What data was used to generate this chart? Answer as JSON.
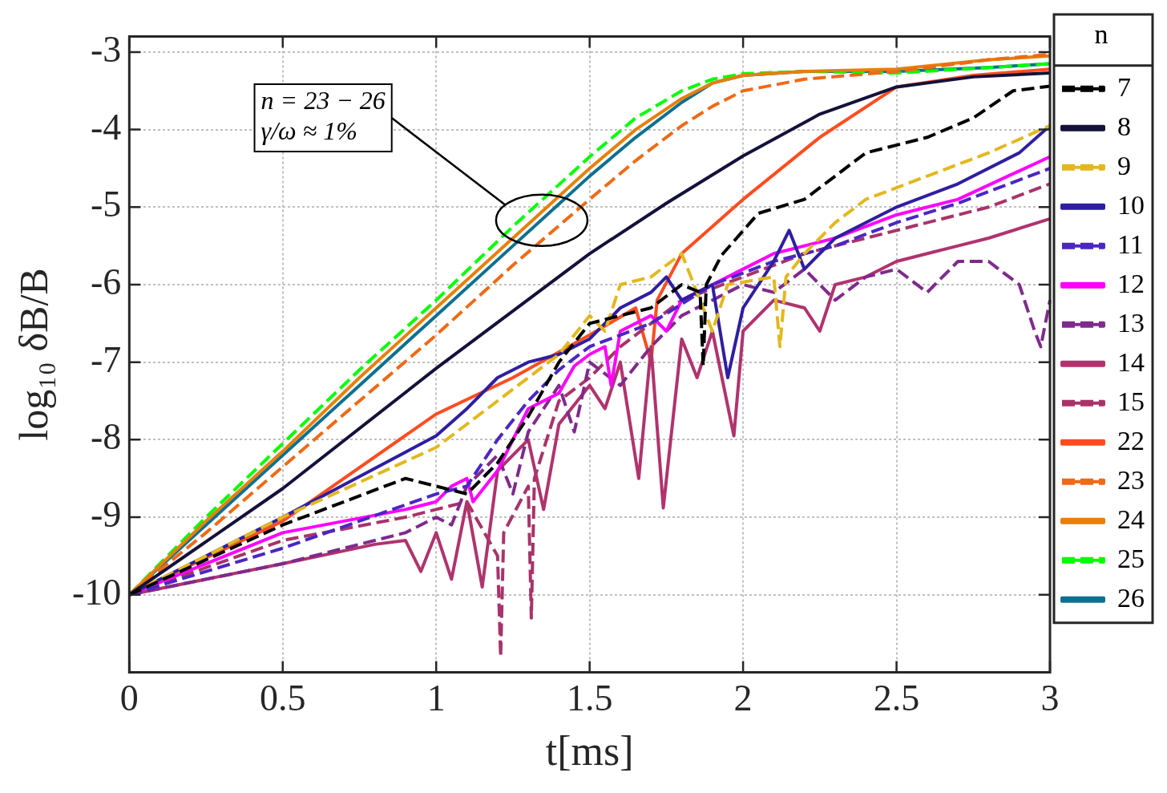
{
  "chart_data": {
    "type": "line",
    "xlabel": "t[ms]",
    "ylabel": "log₁₀ δB/B",
    "legend_title": "n",
    "legend": "right",
    "grid": true,
    "xlim": [
      0,
      3
    ],
    "xticks": [
      0,
      0.5,
      1,
      1.5,
      2,
      2.5,
      3
    ],
    "ylim": [
      -11,
      -2.8
    ],
    "yticks": [
      -10,
      -9,
      -8,
      -7,
      -6,
      -5,
      -4,
      -3
    ],
    "annotations": [
      "n = 23 − 26\nγ/ω ≈ 1%"
    ],
    "series": [
      {
        "name": "7",
        "color": "#000000",
        "line_style": "dashed",
        "x": [
          0,
          0.5,
          0.9,
          1.0,
          1.1,
          1.2,
          1.3,
          1.4,
          1.5,
          1.6,
          1.7,
          1.8,
          1.86,
          1.87,
          1.88,
          1.93,
          2.05,
          2.2,
          2.4,
          2.6,
          2.75,
          2.88,
          3
        ],
        "values": [
          -10,
          -9.1,
          -8.5,
          -8.6,
          -8.7,
          -8.3,
          -7.7,
          -7.0,
          -6.5,
          -6.4,
          -6.3,
          -6.0,
          -6.1,
          -7.05,
          -6.0,
          -5.62,
          -5.08,
          -4.9,
          -4.3,
          -4.1,
          -3.85,
          -3.5,
          -3.44
        ]
      },
      {
        "name": "8",
        "color": "#14123a",
        "x": [
          0,
          0.5,
          1,
          1.5,
          1.75,
          2,
          2.25,
          2.5,
          2.75,
          3
        ],
        "values": [
          -10,
          -8.63,
          -7.08,
          -5.6,
          -4.95,
          -4.34,
          -3.8,
          -3.45,
          -3.32,
          -3.27
        ]
      },
      {
        "name": "9",
        "color": "#e3b81d",
        "line_style": "dashed",
        "x": [
          0,
          0.5,
          1,
          1.1,
          1.2,
          1.3,
          1.4,
          1.5,
          1.55,
          1.6,
          1.7,
          1.8,
          1.85,
          1.9,
          1.95,
          2.1,
          2.12,
          2.14,
          2.2,
          2.3,
          2.4,
          2.6,
          2.8,
          3
        ],
        "values": [
          -10,
          -9.0,
          -8.1,
          -7.8,
          -7.5,
          -7.2,
          -6.9,
          -6.4,
          -6.6,
          -6.0,
          -5.9,
          -5.6,
          -6.1,
          -6.6,
          -6.0,
          -5.9,
          -6.8,
          -5.9,
          -5.6,
          -5.2,
          -4.9,
          -4.6,
          -4.3,
          -3.95
        ]
      },
      {
        "name": "10",
        "color": "#2e1fa0",
        "x": [
          0,
          0.5,
          1,
          1.1,
          1.2,
          1.3,
          1.4,
          1.5,
          1.6,
          1.7,
          1.75,
          1.8,
          1.9,
          1.95,
          2.0,
          2.1,
          2.15,
          2.2,
          2.3,
          2.5,
          2.7,
          2.9,
          3
        ],
        "values": [
          -10,
          -9.0,
          -7.95,
          -7.6,
          -7.2,
          -7.0,
          -6.9,
          -6.7,
          -6.3,
          -6.1,
          -5.9,
          -6.2,
          -6.0,
          -7.2,
          -6.3,
          -5.7,
          -5.3,
          -5.8,
          -5.4,
          -5.0,
          -4.7,
          -4.3,
          -3.95
        ]
      },
      {
        "name": "11",
        "color": "#4b26c4",
        "line_style": "dashed",
        "x": [
          0,
          0.5,
          1,
          1.1,
          1.2,
          1.3,
          1.4,
          1.5,
          1.7,
          1.9,
          2.1,
          2.3,
          2.5,
          2.7,
          3
        ],
        "values": [
          -10,
          -9.4,
          -8.7,
          -8.6,
          -8.0,
          -7.5,
          -7.1,
          -6.8,
          -6.5,
          -6.0,
          -5.7,
          -5.5,
          -5.2,
          -4.95,
          -4.5
        ]
      },
      {
        "name": "12",
        "color": "#ff00ff",
        "x": [
          0,
          0.5,
          0.9,
          1.0,
          1.05,
          1.1,
          1.12,
          1.2,
          1.3,
          1.4,
          1.45,
          1.5,
          1.55,
          1.57,
          1.6,
          1.7,
          1.75,
          1.8,
          1.9,
          2.0,
          2.1,
          2.3,
          2.5,
          2.7,
          3
        ],
        "values": [
          -10,
          -9.2,
          -8.9,
          -8.8,
          -8.6,
          -8.5,
          -8.8,
          -8.4,
          -7.6,
          -7.4,
          -7.05,
          -6.9,
          -6.8,
          -7.3,
          -6.6,
          -6.4,
          -6.6,
          -6.2,
          -6.0,
          -5.8,
          -5.6,
          -5.4,
          -5.1,
          -4.9,
          -4.35
        ]
      },
      {
        "name": "13",
        "color": "#7f2a8c",
        "line_style": "dashed",
        "x": [
          0,
          0.5,
          0.9,
          1.0,
          1.05,
          1.1,
          1.2,
          1.25,
          1.3,
          1.4,
          1.45,
          1.5,
          1.6,
          1.7,
          1.8,
          2.0,
          2.1,
          2.2,
          2.3,
          2.4,
          2.5,
          2.6,
          2.7,
          2.8,
          2.9,
          2.95,
          2.97,
          3
        ],
        "values": [
          -10,
          -9.6,
          -9.2,
          -9.0,
          -9.1,
          -8.6,
          -8.2,
          -8.7,
          -7.9,
          -7.3,
          -7.9,
          -7.0,
          -7.3,
          -6.8,
          -6.4,
          -6.0,
          -6.1,
          -5.8,
          -6.2,
          -5.9,
          -5.8,
          -6.1,
          -5.7,
          -5.7,
          -6.0,
          -6.6,
          -6.8,
          -6.2
        ]
      },
      {
        "name": "14",
        "color": "#b0336e",
        "x": [
          0,
          0.5,
          0.8,
          0.9,
          0.95,
          1.0,
          1.05,
          1.1,
          1.15,
          1.2,
          1.3,
          1.35,
          1.4,
          1.5,
          1.55,
          1.6,
          1.66,
          1.7,
          1.74,
          1.8,
          1.85,
          1.9,
          1.97,
          2.0,
          2.1,
          2.2,
          2.25,
          2.3,
          2.4,
          2.5,
          2.6,
          2.7,
          2.8,
          3
        ],
        "values": [
          -10,
          -9.6,
          -9.35,
          -9.3,
          -9.7,
          -9.2,
          -9.8,
          -8.8,
          -9.9,
          -8.4,
          -8.0,
          -8.9,
          -7.8,
          -7.3,
          -7.6,
          -7.0,
          -8.5,
          -6.8,
          -8.88,
          -6.7,
          -7.2,
          -6.6,
          -7.95,
          -6.6,
          -6.2,
          -6.3,
          -6.6,
          -6.0,
          -5.9,
          -5.7,
          -5.6,
          -5.5,
          -5.4,
          -5.15
        ]
      },
      {
        "name": "15",
        "color": "#a8336a",
        "line_style": "dashed",
        "x": [
          0,
          0.5,
          0.9,
          1.0,
          1.1,
          1.2,
          1.21,
          1.22,
          1.3,
          1.31,
          1.32,
          1.4,
          1.5,
          1.6,
          1.7,
          1.8,
          2.0,
          2.2,
          2.4,
          2.6,
          2.8,
          3
        ],
        "values": [
          -10,
          -9.3,
          -9.0,
          -8.9,
          -8.8,
          -9.5,
          -10.8,
          -9.2,
          -8.6,
          -10.3,
          -8.5,
          -7.5,
          -7.2,
          -6.8,
          -6.5,
          -6.2,
          -5.9,
          -5.6,
          -5.4,
          -5.2,
          -5.0,
          -4.7
        ]
      },
      {
        "name": "22",
        "color": "#ff4d1f",
        "x": [
          0,
          0.5,
          1,
          1.25,
          1.5,
          1.65,
          1.7,
          1.72,
          1.8,
          1.9,
          2,
          2.25,
          2.5,
          2.75,
          3
        ],
        "values": [
          -10,
          -9.05,
          -7.67,
          -7.2,
          -6.65,
          -6.3,
          -7.0,
          -6.2,
          -5.6,
          -5.25,
          -4.9,
          -4.1,
          -3.45,
          -3.3,
          -3.22
        ]
      },
      {
        "name": "23",
        "color": "#ee6a16",
        "line_style": "dashed",
        "x": [
          0,
          0.25,
          0.5,
          0.75,
          1,
          1.25,
          1.5,
          1.65,
          1.8,
          1.9,
          2.0,
          2.2,
          2.5,
          2.8,
          3
        ],
        "values": [
          -10,
          -9.2,
          -8.35,
          -7.5,
          -6.65,
          -5.75,
          -4.9,
          -4.4,
          -3.95,
          -3.7,
          -3.5,
          -3.35,
          -3.25,
          -3.1,
          -3.03
        ]
      },
      {
        "name": "24",
        "color": "#e6800a",
        "x": [
          0,
          0.25,
          0.5,
          0.75,
          1,
          1.25,
          1.5,
          1.65,
          1.8,
          1.9,
          2.0,
          2.2,
          2.5,
          2.8,
          3
        ],
        "values": [
          -10,
          -9.05,
          -8.15,
          -7.2,
          -6.3,
          -5.4,
          -4.5,
          -4.0,
          -3.6,
          -3.4,
          -3.3,
          -3.25,
          -3.22,
          -3.1,
          -3.05
        ]
      },
      {
        "name": "25",
        "color": "#00ff00",
        "line_style": "dashed",
        "x": [
          0,
          0.25,
          0.5,
          0.75,
          1,
          1.25,
          1.5,
          1.65,
          1.8,
          1.9,
          2.0,
          2.2,
          2.5,
          2.8,
          3
        ],
        "values": [
          -10,
          -9.0,
          -8.05,
          -7.1,
          -6.2,
          -5.25,
          -4.35,
          -3.85,
          -3.5,
          -3.35,
          -3.28,
          -3.25,
          -3.27,
          -3.2,
          -3.15
        ]
      },
      {
        "name": "26",
        "color": "#0d7090",
        "x": [
          0,
          0.25,
          0.5,
          0.75,
          1,
          1.25,
          1.5,
          1.65,
          1.8,
          1.9,
          2.0,
          2.2,
          2.5,
          2.8,
          3
        ],
        "values": [
          -10,
          -9.1,
          -8.2,
          -7.3,
          -6.4,
          -5.5,
          -4.6,
          -4.1,
          -3.65,
          -3.4,
          -3.3,
          -3.25,
          -3.25,
          -3.2,
          -3.15
        ]
      }
    ]
  }
}
